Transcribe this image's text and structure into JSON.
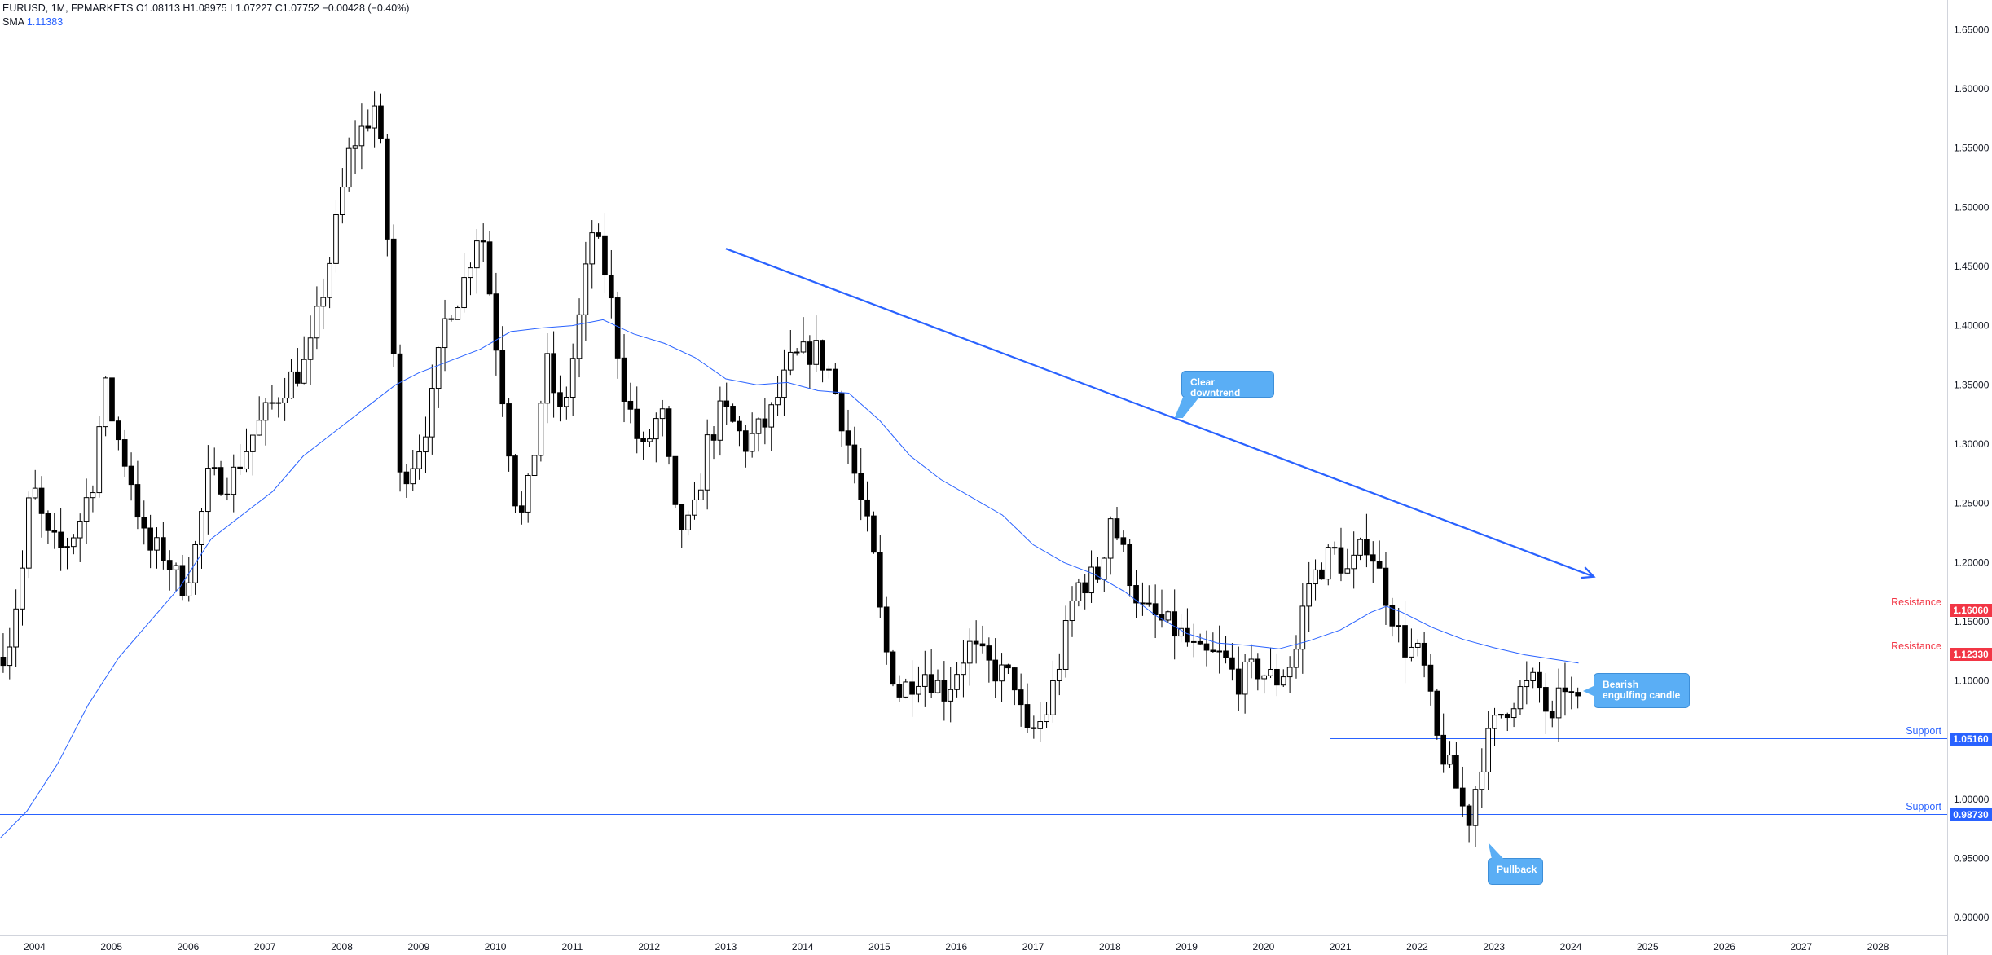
{
  "legend": {
    "symbol": "EURUSD, 1M, FPMARKETS",
    "open": "O1.08113",
    "high": "H1.08975",
    "low": "L1.07227",
    "close": "C1.07752",
    "change": "−0.00428 (−0.40%)",
    "sma_label": "SMA",
    "sma_value": "1.11383"
  },
  "annotations": {
    "downtrend": "Clear downtrend",
    "bearish": "Bearish engulfing candle",
    "pullback": "Pullback"
  },
  "levels": [
    {
      "label": "Resistance",
      "value": 1.1606,
      "tag": "1.16060",
      "color": "#f23645"
    },
    {
      "label": "Resistance",
      "value": 1.1233,
      "tag": "1.12330",
      "color": "#f23645"
    },
    {
      "label": "Support",
      "value": 1.0516,
      "tag": "1.05160",
      "color": "#2962ff"
    },
    {
      "label": "Support",
      "value": 0.9873,
      "tag": "0.98730",
      "color": "#2962ff"
    }
  ],
  "colors": {
    "sma": "#2962ff",
    "trend": "#2962ff",
    "candle": "#000000"
  },
  "chart_data": {
    "type": "candlestick",
    "title": "",
    "x_ticks": [
      "2004",
      "2005",
      "2006",
      "2007",
      "2008",
      "2009",
      "2010",
      "2011",
      "2012",
      "2013",
      "2014",
      "2015",
      "2016",
      "2017",
      "2018",
      "2019",
      "2020",
      "2021",
      "2022",
      "2023",
      "2024",
      "2025",
      "2026",
      "2027",
      "2028"
    ],
    "y_ticks": [
      "0.90000",
      "0.95000",
      "1.00000",
      "1.05000",
      "1.10000",
      "1.15000",
      "1.20000",
      "1.25000",
      "1.30000",
      "1.35000",
      "1.40000",
      "1.45000",
      "1.50000",
      "1.55000",
      "1.60000",
      "1.65000"
    ],
    "ylim": [
      0.885,
      1.675
    ],
    "xlim": [
      2003.55,
      2028.9
    ],
    "close_path": [
      [
        2003.55,
        1.12
      ],
      [
        2003.7,
        1.13
      ],
      [
        2003.9,
        1.2
      ],
      [
        2004.0,
        1.27
      ],
      [
        2004.2,
        1.22
      ],
      [
        2004.4,
        1.21
      ],
      [
        2004.6,
        1.23
      ],
      [
        2004.8,
        1.27
      ],
      [
        2004.95,
        1.35
      ],
      [
        2005.1,
        1.31
      ],
      [
        2005.3,
        1.27
      ],
      [
        2005.5,
        1.21
      ],
      [
        2005.7,
        1.21
      ],
      [
        2005.95,
        1.18
      ],
      [
        2006.1,
        1.2
      ],
      [
        2006.3,
        1.27
      ],
      [
        2006.6,
        1.27
      ],
      [
        2006.9,
        1.31
      ],
      [
        2007.1,
        1.33
      ],
      [
        2007.3,
        1.35
      ],
      [
        2007.6,
        1.37
      ],
      [
        2007.9,
        1.46
      ],
      [
        2008.15,
        1.55
      ],
      [
        2008.35,
        1.57
      ],
      [
        2008.5,
        1.59
      ],
      [
        2008.65,
        1.46
      ],
      [
        2008.8,
        1.27
      ],
      [
        2009.0,
        1.29
      ],
      [
        2009.2,
        1.33
      ],
      [
        2009.4,
        1.41
      ],
      [
        2009.6,
        1.43
      ],
      [
        2009.85,
        1.49
      ],
      [
        2010.1,
        1.36
      ],
      [
        2010.35,
        1.23
      ],
      [
        2010.5,
        1.27
      ],
      [
        2010.7,
        1.37
      ],
      [
        2010.9,
        1.32
      ],
      [
        2011.1,
        1.39
      ],
      [
        2011.3,
        1.48
      ],
      [
        2011.5,
        1.44
      ],
      [
        2011.7,
        1.35
      ],
      [
        2011.95,
        1.29
      ],
      [
        2012.2,
        1.33
      ],
      [
        2012.4,
        1.23
      ],
      [
        2012.6,
        1.23
      ],
      [
        2012.8,
        1.3
      ],
      [
        2013.0,
        1.33
      ],
      [
        2013.3,
        1.3
      ],
      [
        2013.6,
        1.32
      ],
      [
        2013.9,
        1.37
      ],
      [
        2014.2,
        1.38
      ],
      [
        2014.4,
        1.36
      ],
      [
        2014.6,
        1.31
      ],
      [
        2014.8,
        1.25
      ],
      [
        2014.95,
        1.21
      ],
      [
        2015.1,
        1.13
      ],
      [
        2015.3,
        1.09
      ],
      [
        2015.6,
        1.11
      ],
      [
        2015.9,
        1.09
      ],
      [
        2016.2,
        1.13
      ],
      [
        2016.5,
        1.11
      ],
      [
        2016.8,
        1.1
      ],
      [
        2016.95,
        1.05
      ],
      [
        2017.2,
        1.07
      ],
      [
        2017.4,
        1.12
      ],
      [
        2017.6,
        1.18
      ],
      [
        2017.9,
        1.19
      ],
      [
        2018.05,
        1.24
      ],
      [
        2018.25,
        1.2
      ],
      [
        2018.45,
        1.16
      ],
      [
        2018.7,
        1.15
      ],
      [
        2018.95,
        1.14
      ],
      [
        2019.2,
        1.12
      ],
      [
        2019.5,
        1.12
      ],
      [
        2019.7,
        1.1
      ],
      [
        2019.95,
        1.11
      ],
      [
        2020.2,
        1.1
      ],
      [
        2020.45,
        1.12
      ],
      [
        2020.6,
        1.18
      ],
      [
        2020.95,
        1.21
      ],
      [
        2021.15,
        1.19
      ],
      [
        2021.4,
        1.22
      ],
      [
        2021.6,
        1.18
      ],
      [
        2021.85,
        1.13
      ],
      [
        2022.1,
        1.12
      ],
      [
        2022.3,
        1.05
      ],
      [
        2022.5,
        1.02
      ],
      [
        2022.7,
        0.98
      ],
      [
        2022.9,
        1.04
      ],
      [
        2023.1,
        1.07
      ],
      [
        2023.35,
        1.09
      ],
      [
        2023.6,
        1.1
      ],
      [
        2023.8,
        1.06
      ],
      [
        2023.95,
        1.1
      ],
      [
        2024.1,
        1.0775
      ]
    ],
    "sma_path": [
      [
        2003.55,
        0.967
      ],
      [
        2003.9,
        0.99
      ],
      [
        2004.3,
        1.03
      ],
      [
        2004.7,
        1.08
      ],
      [
        2005.1,
        1.12
      ],
      [
        2005.5,
        1.15
      ],
      [
        2005.9,
        1.18
      ],
      [
        2006.3,
        1.22
      ],
      [
        2006.7,
        1.24
      ],
      [
        2007.1,
        1.26
      ],
      [
        2007.5,
        1.29
      ],
      [
        2007.9,
        1.31
      ],
      [
        2008.3,
        1.33
      ],
      [
        2008.7,
        1.35
      ],
      [
        2009.0,
        1.36
      ],
      [
        2009.4,
        1.37
      ],
      [
        2009.8,
        1.38
      ],
      [
        2010.2,
        1.395
      ],
      [
        2010.6,
        1.398
      ],
      [
        2011.0,
        1.4
      ],
      [
        2011.4,
        1.405
      ],
      [
        2011.8,
        1.393
      ],
      [
        2012.2,
        1.385
      ],
      [
        2012.6,
        1.373
      ],
      [
        2013.0,
        1.355
      ],
      [
        2013.4,
        1.35
      ],
      [
        2013.8,
        1.352
      ],
      [
        2014.2,
        1.345
      ],
      [
        2014.6,
        1.343
      ],
      [
        2015.0,
        1.32
      ],
      [
        2015.4,
        1.29
      ],
      [
        2015.8,
        1.27
      ],
      [
        2016.2,
        1.255
      ],
      [
        2016.6,
        1.24
      ],
      [
        2017.0,
        1.215
      ],
      [
        2017.4,
        1.2
      ],
      [
        2017.8,
        1.19
      ],
      [
        2018.2,
        1.175
      ],
      [
        2018.6,
        1.155
      ],
      [
        2019.0,
        1.14
      ],
      [
        2019.4,
        1.132
      ],
      [
        2019.8,
        1.13
      ],
      [
        2020.2,
        1.127
      ],
      [
        2020.6,
        1.134
      ],
      [
        2021.0,
        1.143
      ],
      [
        2021.4,
        1.158
      ],
      [
        2021.6,
        1.163
      ],
      [
        2021.8,
        1.158
      ],
      [
        2022.2,
        1.145
      ],
      [
        2022.6,
        1.135
      ],
      [
        2023.0,
        1.128
      ],
      [
        2023.4,
        1.122
      ],
      [
        2023.8,
        1.118
      ],
      [
        2024.1,
        1.115
      ]
    ],
    "trendline": [
      [
        2013.0,
        1.465
      ],
      [
        2024.3,
        1.188
      ]
    ]
  }
}
